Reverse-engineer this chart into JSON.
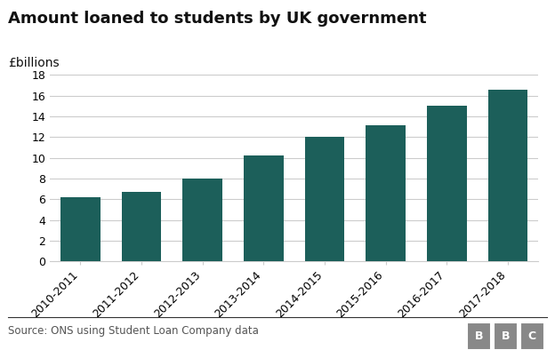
{
  "categories": [
    "2010-2011",
    "2011-2012",
    "2012-2013",
    "2013-2014",
    "2014-2015",
    "2015-2016",
    "2016-2017",
    "2017-2018"
  ],
  "values": [
    6.2,
    6.7,
    8.0,
    10.2,
    12.0,
    13.1,
    15.0,
    16.6
  ],
  "bar_color": "#1c5f5a",
  "title": "Amount loaned to students by UK government",
  "ylabel": "£billions",
  "ylim": [
    0,
    19
  ],
  "yticks": [
    0,
    2,
    4,
    6,
    8,
    10,
    12,
    14,
    16,
    18
  ],
  "source_text": "Source: ONS using Student Loan Company data",
  "background_color": "#ffffff",
  "grid_color": "#cccccc",
  "title_fontsize": 13,
  "ylabel_fontsize": 10,
  "tick_fontsize": 9,
  "source_fontsize": 8.5,
  "bbc_fontsize": 9,
  "bbc_bg_color": "#888888"
}
